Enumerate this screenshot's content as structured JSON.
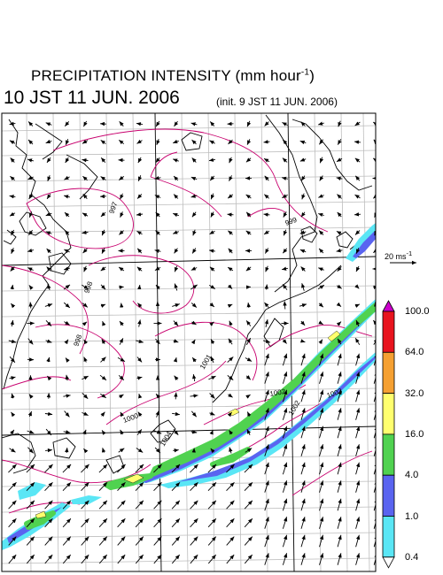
{
  "header": {
    "title_main": "PRECIPITATION INTENSITY (mm hour",
    "title_sup": "-1",
    "title_close": ")",
    "valid_time": "10 JST 11 JUN. 2006",
    "init_time": "(init. 9 JST 11 JUN. 2006)"
  },
  "wind_legend": {
    "label": "20 ms",
    "label_sup": "-1"
  },
  "colorbar": {
    "labels": [
      "100.0",
      "64.0",
      "32.0",
      "16.0",
      "4.0",
      "1.0",
      "0.4"
    ],
    "colors": [
      "#cc00cc",
      "#e8141e",
      "#f5a032",
      "#ffff6e",
      "#50d250",
      "#5a64f0",
      "#5ae6f5",
      "#ffffff"
    ]
  },
  "isobars": [
    "997",
    "998",
    "998",
    "999",
    "1000",
    "1001",
    "1002",
    "1002",
    "1003",
    "1004"
  ],
  "rain_colors": {
    "light": "#5ae6f5",
    "moderate": "#5a64f0",
    "heavy": "#50d250",
    "intense": "#ffff6e"
  }
}
